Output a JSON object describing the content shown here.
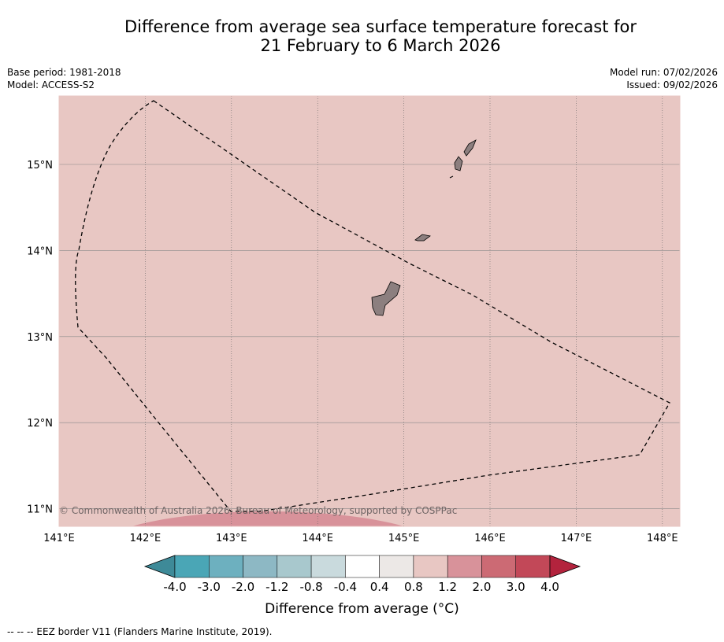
{
  "title_line1": "Difference from average sea surface temperature forecast for",
  "title_line2": "21 February to 6 March 2026",
  "meta": {
    "base_period": "Base period: 1981-2018",
    "model": "Model: ACCESS-S2",
    "model_run": "Model run: 07/02/2026",
    "issued": "Issued: 09/02/2026"
  },
  "map": {
    "lat_labels": [
      "15°N",
      "14°N",
      "13°N",
      "12°N",
      "11°N"
    ],
    "lon_labels": [
      "141°E",
      "142°E",
      "143°E",
      "144°E",
      "145°E",
      "146°E",
      "147°E",
      "148°E"
    ],
    "lon_range": [
      141,
      148.2
    ],
    "lat_range": [
      10.8,
      15.8
    ],
    "background_color": "#e8c7c3",
    "anomaly_patch_color": "#d8929a",
    "copyright": "© Commonwealth of Australia 2026, Bureau of Meteorology, supported by COSPPac"
  },
  "colorbar": {
    "tick_labels": [
      "-4.0",
      "-3.0",
      "-2.0",
      "-1.2",
      "-0.8",
      "-0.4",
      "0.4",
      "0.8",
      "1.2",
      "2.0",
      "3.0",
      "4.0"
    ],
    "colors": [
      "#3e8a98",
      "#4aa6b6",
      "#6db0bf",
      "#8db8c4",
      "#a8c8cd",
      "#c9dadd",
      "#ffffff",
      "#ece8e6",
      "#e8c7c3",
      "#d8929a",
      "#cc6a74",
      "#c24858",
      "#b3233d"
    ],
    "label": "Difference from average (°C)"
  },
  "legend_footer": "--  --  -- EEZ border V11 (Flanders Marine Institute, 2019)."
}
